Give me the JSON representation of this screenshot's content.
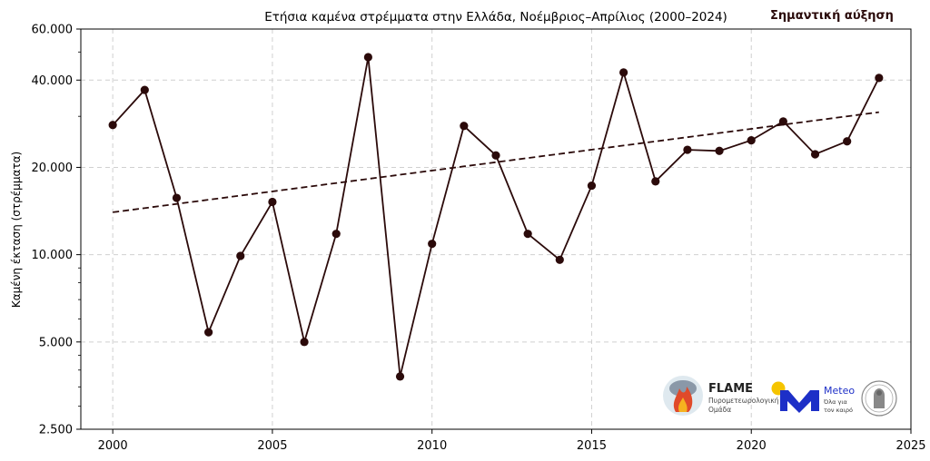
{
  "chart_data": {
    "type": "line",
    "title": "Ετήσια καμένα στρέμματα στην Ελλάδα, Νοέμβριος–Απρίλιος (2000–2024)",
    "badge": "Σημαντική αύξηση",
    "xlabel": "",
    "ylabel": "Καμένη έκταση (στρέμματα)",
    "y_scale": "log",
    "xlim": [
      1999,
      2025
    ],
    "ylim": [
      2500,
      60000
    ],
    "x_ticks": [
      2000,
      2005,
      2010,
      2015,
      2020,
      2025
    ],
    "x_tick_labels": [
      "2000",
      "2005",
      "2010",
      "2015",
      "2020",
      "2025"
    ],
    "y_ticks": [
      2500,
      5000,
      10000,
      20000,
      40000,
      60000
    ],
    "y_tick_labels": [
      "2.500",
      "5.000",
      "10.000",
      "20.000",
      "40.000",
      "60.000"
    ],
    "grid": true,
    "series": [
      {
        "values": [
          [
            2000,
            28000
          ],
          [
            2001,
            37000
          ],
          [
            2002,
            15700
          ],
          [
            2003,
            5400
          ],
          [
            2004,
            9900
          ],
          [
            2005,
            15200
          ],
          [
            2006,
            5000
          ],
          [
            2007,
            11800
          ],
          [
            2008,
            48000
          ],
          [
            2009,
            3800
          ],
          [
            2010,
            10900
          ],
          [
            2011,
            27800
          ],
          [
            2012,
            22000
          ],
          [
            2013,
            11800
          ],
          [
            2014,
            9600
          ],
          [
            2015,
            17300
          ],
          [
            2016,
            42500
          ],
          [
            2017,
            17900
          ],
          [
            2018,
            23000
          ],
          [
            2019,
            22800
          ],
          [
            2020,
            24800
          ],
          [
            2021,
            28800
          ],
          [
            2022,
            22200
          ],
          [
            2023,
            24600
          ],
          [
            2024,
            40700
          ]
        ],
        "color": "#2b0a0a",
        "style": "solid",
        "markers": true
      },
      {
        "values": [
          [
            2000,
            14000
          ],
          [
            2024,
            31000
          ]
        ],
        "color": "#2b0a0a",
        "style": "dashed",
        "markers": false
      }
    ]
  },
  "logos": {
    "flame_name": "FLAME",
    "flame_sub1": "Πυρομετεωρολογική",
    "flame_sub2": "Ομάδα",
    "meteo_name": "Meteo",
    "meteo_sub1": "Όλα για",
    "meteo_sub2": "τον καιρό"
  }
}
